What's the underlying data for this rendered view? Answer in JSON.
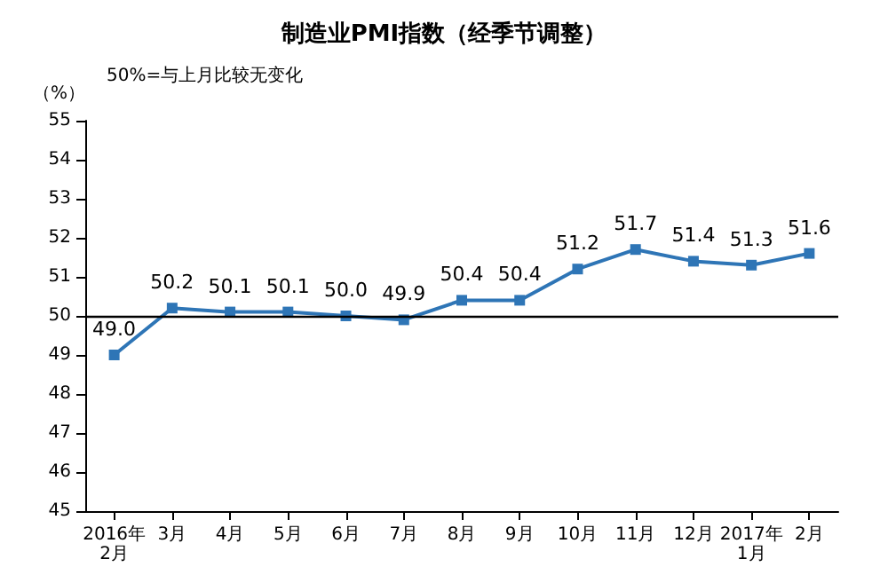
{
  "chart_data": {
    "type": "line",
    "title": "制造业PMI指数（经季节调整）",
    "ylabel": "（%）",
    "annotations": [
      "50%=与上月比较无变化"
    ],
    "categories": [
      "2016年\n2月",
      "3月",
      "4月",
      "5月",
      "6月",
      "7月",
      "8月",
      "9月",
      "10月",
      "11月",
      "12月",
      "2017年\n1月",
      "2月"
    ],
    "series": [
      {
        "color": "#2e75b6",
        "values": [
          49.0,
          50.2,
          50.1,
          50.1,
          50.0,
          49.9,
          50.4,
          50.4,
          51.2,
          51.7,
          51.4,
          51.3,
          51.6
        ],
        "value_labels": [
          "49.0",
          "50.2",
          "50.1",
          "50.1",
          "50.0",
          "49.9",
          "50.4",
          "50.4",
          "51.2",
          "51.7",
          "51.4",
          "51.3",
          "51.6"
        ]
      }
    ],
    "ylim": [
      45,
      55
    ],
    "yticks": [
      45,
      46,
      47,
      48,
      49,
      50,
      51,
      52,
      53,
      54,
      55
    ],
    "ref_lines": [
      {
        "axis": "y",
        "value": 50,
        "color": "#000000"
      }
    ],
    "marker": "square",
    "line_style": "solid"
  }
}
